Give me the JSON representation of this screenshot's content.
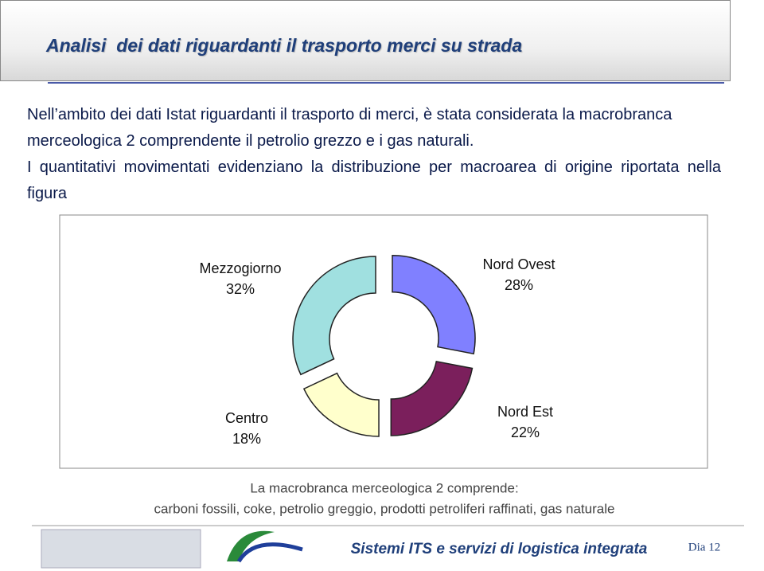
{
  "header": {
    "title": "Analisi  dei dati riguardanti il trasporto merci su strada"
  },
  "body": {
    "paragraphs": [
      "Nell’ambito dei dati Istat riguardanti il trasporto di merci, è stata considerata la macrobranca merceologica 2 comprendente il petrolio grezzo e i gas naturali.",
      "I quantitativi movimentati evidenziano la distribuzione per macroarea di origine riportata nella figura"
    ]
  },
  "chart_data": {
    "type": "doughnut",
    "categories": [
      "Nord Ovest",
      "Nord Est",
      "Centro",
      "Mezzogiorno"
    ],
    "values": [
      28,
      22,
      18,
      32
    ],
    "value_labels": [
      "28%",
      "22%",
      "18%",
      "32%"
    ],
    "colors": [
      "#8080ff",
      "#7b1f5c",
      "#ffffcc",
      "#a0e0e0"
    ]
  },
  "caption": [
    "La macrobranca merceologica 2 comprende:",
    "carboni fossili, coke, petrolio greggio, prodotti petroliferi raffinati, gas naturale"
  ],
  "footer": {
    "title": "Sistemi ITS e servizi di logistica integrata",
    "slide": "Dia 12"
  }
}
